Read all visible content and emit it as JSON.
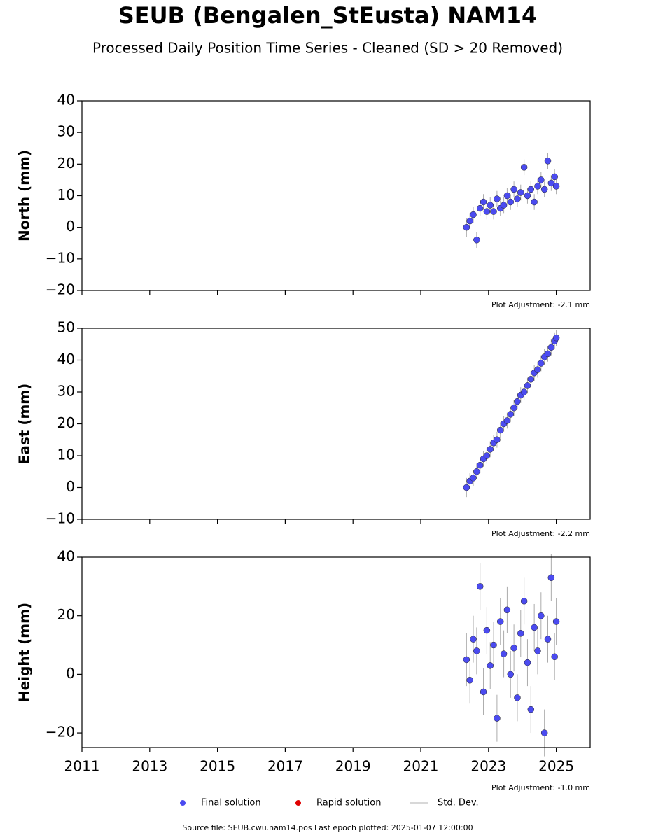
{
  "title": "SEUB (Bengalen_StEusta) NAM14",
  "subtitle": "Processed Daily Position Time Series - Cleaned (SD > 20 Removed)",
  "chart_data": [
    {
      "type": "scatter",
      "ylabel": "North (mm)",
      "annotation": "Plot Adjustment: -2.1 mm",
      "color": "#4b4bf0",
      "x": [
        2022.35,
        2022.45,
        2022.55,
        2022.65,
        2022.75,
        2022.85,
        2022.95,
        2023.05,
        2023.15,
        2023.25,
        2023.35,
        2023.45,
        2023.55,
        2023.65,
        2023.75,
        2023.85,
        2023.95,
        2024.05,
        2024.15,
        2024.25,
        2024.35,
        2024.45,
        2024.55,
        2024.65,
        2024.75,
        2024.85,
        2024.95,
        2025.0
      ],
      "values": [
        0,
        2,
        4,
        -4,
        6,
        8,
        5,
        7,
        5,
        9,
        6,
        7,
        10,
        8,
        12,
        9,
        11,
        19,
        10,
        12,
        8,
        13,
        15,
        12,
        21,
        14,
        16,
        13
      ],
      "errors": [
        3,
        2.5,
        2.5,
        2.5,
        2.5,
        2.5,
        2.5,
        2.5,
        2.5,
        2.5,
        2.5,
        2.5,
        2.5,
        2.5,
        2.5,
        2.5,
        2.5,
        2.5,
        2.5,
        2.5,
        2.5,
        2.5,
        2.5,
        2.5,
        2.5,
        2.5,
        2.5,
        2.5
      ],
      "xlim": [
        2011,
        2026
      ],
      "xticks": [
        2011,
        2013,
        2015,
        2017,
        2019,
        2021,
        2023,
        2025
      ],
      "ylim": [
        -20,
        40
      ],
      "yticks": [
        {
          "value": -20,
          "label": "−20"
        },
        {
          "value": -10,
          "label": "−10"
        },
        0,
        10,
        20,
        30,
        40
      ]
    },
    {
      "type": "scatter",
      "ylabel": "East (mm)",
      "annotation": "Plot Adjustment: -2.2 mm",
      "color": "#4b4bf0",
      "x": [
        2022.35,
        2022.45,
        2022.55,
        2022.65,
        2022.75,
        2022.85,
        2022.95,
        2023.05,
        2023.15,
        2023.25,
        2023.35,
        2023.45,
        2023.55,
        2023.65,
        2023.75,
        2023.85,
        2023.95,
        2024.05,
        2024.15,
        2024.25,
        2024.35,
        2024.45,
        2024.55,
        2024.65,
        2024.75,
        2024.85,
        2024.95,
        2025.0
      ],
      "values": [
        0,
        2,
        3,
        5,
        7,
        9,
        10,
        12,
        14,
        15,
        18,
        20,
        21,
        23,
        25,
        27,
        29,
        30,
        32,
        34,
        36,
        37,
        39,
        41,
        42,
        44,
        46,
        47
      ],
      "errors": [
        3,
        2.5,
        2.5,
        2.5,
        2.5,
        2.5,
        2.5,
        2.5,
        2.5,
        2.5,
        2.5,
        2.5,
        2.5,
        2.5,
        2.5,
        2.5,
        2.5,
        2.5,
        2.5,
        2.5,
        2.5,
        2.5,
        2.5,
        2.5,
        2.5,
        2.5,
        2.5,
        2.5
      ],
      "xlim": [
        2011,
        2026
      ],
      "xticks": [
        2011,
        2013,
        2015,
        2017,
        2019,
        2021,
        2023,
        2025
      ],
      "ylim": [
        -10,
        50
      ],
      "yticks": [
        {
          "value": -10,
          "label": "−10"
        },
        0,
        10,
        20,
        30,
        40,
        50
      ]
    },
    {
      "type": "scatter",
      "ylabel": "Height (mm)",
      "annotation": "Plot Adjustment: -1.0 mm",
      "color": "#4b4bf0",
      "x": [
        2022.35,
        2022.45,
        2022.55,
        2022.65,
        2022.75,
        2022.85,
        2022.95,
        2023.05,
        2023.15,
        2023.25,
        2023.35,
        2023.45,
        2023.55,
        2023.65,
        2023.75,
        2023.85,
        2023.95,
        2024.05,
        2024.15,
        2024.25,
        2024.35,
        2024.45,
        2024.55,
        2024.65,
        2024.75,
        2024.85,
        2024.95,
        2025.0
      ],
      "values": [
        5,
        -2,
        12,
        8,
        30,
        -6,
        15,
        3,
        10,
        -15,
        18,
        7,
        22,
        0,
        9,
        -8,
        14,
        25,
        4,
        -12,
        16,
        8,
        20,
        -20,
        12,
        33,
        6,
        18
      ],
      "errors": [
        9,
        8,
        8,
        8,
        8,
        8,
        8,
        8,
        8,
        8,
        8,
        8,
        8,
        8,
        8,
        8,
        8,
        8,
        8,
        8,
        8,
        8,
        8,
        8,
        8,
        8,
        8,
        8
      ],
      "xlim": [
        2011,
        2026
      ],
      "xticks": [
        2011,
        2013,
        2015,
        2017,
        2019,
        2021,
        2023,
        2025
      ],
      "ylim": [
        -25,
        40
      ],
      "yticks": [
        {
          "value": -20,
          "label": "−20"
        },
        0,
        20,
        40
      ]
    }
  ],
  "legend": [
    {
      "name": "Final solution",
      "color": "#4b4bf0",
      "marker": "circle"
    },
    {
      "name": "Rapid solution",
      "color": "#e00000",
      "marker": "circle"
    },
    {
      "name": "Std. Dev.",
      "color": "#cccccc",
      "marker": "line"
    }
  ],
  "footer": "Source file: SEUB.cwu.nam14.pos  Last epoch plotted: 2025-01-07 12:00:00"
}
